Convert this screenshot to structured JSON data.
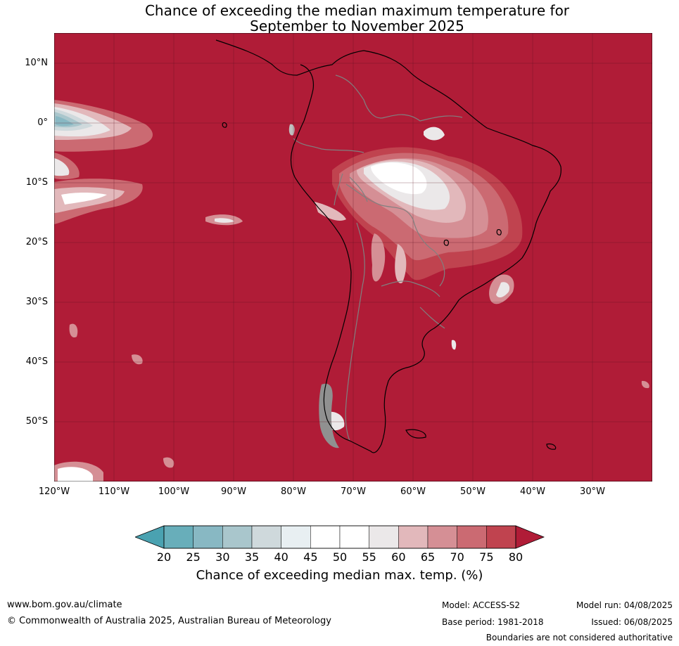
{
  "title_line1": "Chance of exceeding the median maximum temperature for",
  "title_line2": "September to November 2025",
  "map": {
    "lat_labels": [
      "10°N",
      "0°",
      "10°S",
      "20°S",
      "30°S",
      "40°S",
      "50°S"
    ],
    "lon_labels": [
      "120°W",
      "110°W",
      "100°W",
      "90°W",
      "80°W",
      "70°W",
      "60°W",
      "50°W",
      "40°W",
      "30°W"
    ],
    "colors": {
      "background": "#b01c37",
      "c75": "#c0434f",
      "c70": "#cb6a72",
      "c65": "#d58f95",
      "c60": "#e2b8bb",
      "c55": "#ebe8e9",
      "c50": "#ffffff",
      "c40": "#e8eff2",
      "c35": "#cfd9dc",
      "c30": "#a9c6cc",
      "c25": "#88b8c3",
      "c20": "#68aeba",
      "low": "#4aa2b1",
      "coast": "#000000",
      "border": "#808080"
    }
  },
  "colorbar": {
    "ticks": [
      "20",
      "25",
      "30",
      "35",
      "40",
      "45",
      "50",
      "55",
      "60",
      "65",
      "70",
      "75",
      "80"
    ],
    "colors": [
      "#4aa2b1",
      "#68aeba",
      "#88b8c3",
      "#a9c6cc",
      "#cfd9dc",
      "#e8eff2",
      "#ffffff",
      "#ffffff",
      "#ebe8e9",
      "#e2b8bb",
      "#d58f95",
      "#cb6a72",
      "#c0434f",
      "#b01c37"
    ],
    "label": "Chance of exceeding median max. temp. (%)"
  },
  "footer": {
    "website": "www.bom.gov.au/climate",
    "copyright": "© Commonwealth of Australia 2025, Australian Bureau of Meteorology",
    "model": "Model: ACCESS-S2",
    "base_period": "Base period: 1981-2018",
    "model_run": "Model run: 04/08/2025",
    "issued": "Issued: 06/08/2025",
    "disclaimer": "Boundaries are not considered authoritative"
  }
}
